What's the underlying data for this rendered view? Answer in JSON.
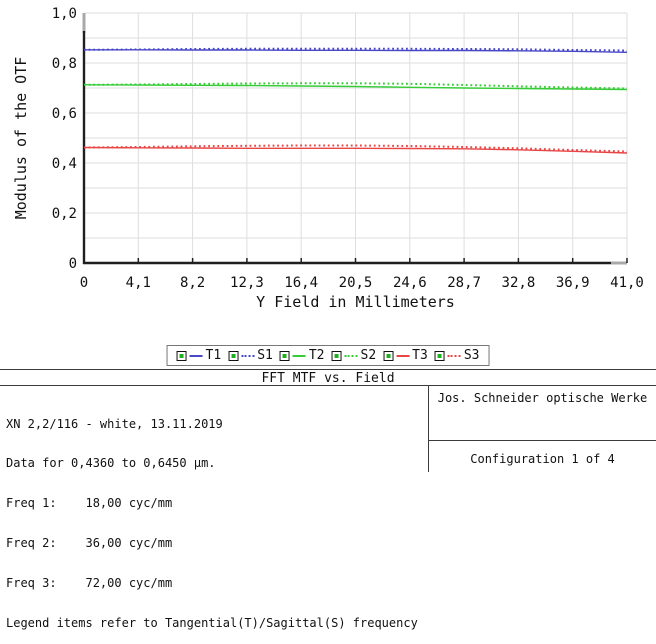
{
  "colors": {
    "blue": "#4747c8",
    "green": "#35cc35",
    "red": "#e84545",
    "grid": "#dedede",
    "axis": "#1f1f1f",
    "axis_cap": "#a9a9a9",
    "text": "#111111"
  },
  "chart_data": {
    "type": "line",
    "xlabel": "Y Field in Millimeters",
    "ylabel": "Modulus of the OTF",
    "xlim": [
      0,
      41.0
    ],
    "ylim": [
      0,
      1.0
    ],
    "grid": "on",
    "xticks": [
      0,
      4.1,
      8.2,
      12.3,
      16.4,
      20.5,
      24.6,
      28.7,
      32.8,
      36.9,
      41.0
    ],
    "xtick_labels": [
      "0",
      "4,1",
      "8,2",
      "12,3",
      "16,4",
      "20,5",
      "24,6",
      "28,7",
      "32,8",
      "36,9",
      "41,0"
    ],
    "yticks": [
      1.0,
      0.8,
      0.6,
      0.4,
      0.2,
      0
    ],
    "ytick_labels": [
      "1,0",
      "0,8",
      "0,6",
      "0,4",
      "0,2",
      "0"
    ],
    "ygrid_step": 0.1,
    "legend_position": "below-chart",
    "series": [
      {
        "name": "T1",
        "color": "blue",
        "style": "solid",
        "points": [
          [
            0,
            0.853
          ],
          [
            4.1,
            0.853
          ],
          [
            8.2,
            0.852
          ],
          [
            12.3,
            0.852
          ],
          [
            16.4,
            0.851
          ],
          [
            20.5,
            0.851
          ],
          [
            24.6,
            0.85
          ],
          [
            28.7,
            0.85
          ],
          [
            32.8,
            0.849
          ],
          [
            36.9,
            0.847
          ],
          [
            41.0,
            0.843
          ]
        ]
      },
      {
        "name": "S1",
        "color": "blue",
        "style": "dotted",
        "points": [
          [
            0,
            0.853
          ],
          [
            4.1,
            0.854
          ],
          [
            8.2,
            0.856
          ],
          [
            12.3,
            0.857
          ],
          [
            16.4,
            0.857
          ],
          [
            20.5,
            0.857
          ],
          [
            24.6,
            0.857
          ],
          [
            28.7,
            0.856
          ],
          [
            32.8,
            0.855
          ],
          [
            36.9,
            0.852
          ],
          [
            41.0,
            0.85
          ]
        ]
      },
      {
        "name": "T2",
        "color": "green",
        "style": "solid",
        "points": [
          [
            0,
            0.713
          ],
          [
            4.1,
            0.712
          ],
          [
            8.2,
            0.711
          ],
          [
            12.3,
            0.71
          ],
          [
            16.4,
            0.708
          ],
          [
            20.5,
            0.706
          ],
          [
            24.6,
            0.703
          ],
          [
            28.7,
            0.7
          ],
          [
            32.8,
            0.698
          ],
          [
            36.9,
            0.696
          ],
          [
            41.0,
            0.694
          ]
        ]
      },
      {
        "name": "S2",
        "color": "green",
        "style": "dotted",
        "points": [
          [
            0,
            0.713
          ],
          [
            4.1,
            0.714
          ],
          [
            8.2,
            0.716
          ],
          [
            12.3,
            0.718
          ],
          [
            16.4,
            0.719
          ],
          [
            20.5,
            0.719
          ],
          [
            24.6,
            0.717
          ],
          [
            28.7,
            0.712
          ],
          [
            32.8,
            0.707
          ],
          [
            36.9,
            0.702
          ],
          [
            41.0,
            0.698
          ]
        ]
      },
      {
        "name": "T3",
        "color": "red",
        "style": "solid",
        "points": [
          [
            0,
            0.462
          ],
          [
            4.1,
            0.461
          ],
          [
            8.2,
            0.46
          ],
          [
            12.3,
            0.459
          ],
          [
            16.4,
            0.459
          ],
          [
            20.5,
            0.459
          ],
          [
            24.6,
            0.458
          ],
          [
            28.7,
            0.457
          ],
          [
            32.8,
            0.453
          ],
          [
            36.9,
            0.447
          ],
          [
            41.0,
            0.44
          ]
        ]
      },
      {
        "name": "S3",
        "color": "red",
        "style": "dotted",
        "points": [
          [
            0,
            0.462
          ],
          [
            4.1,
            0.464
          ],
          [
            8.2,
            0.467
          ],
          [
            12.3,
            0.469
          ],
          [
            16.4,
            0.47
          ],
          [
            20.5,
            0.47
          ],
          [
            24.6,
            0.468
          ],
          [
            28.7,
            0.464
          ],
          [
            32.8,
            0.459
          ],
          [
            36.9,
            0.452
          ],
          [
            41.0,
            0.446
          ]
        ]
      }
    ]
  },
  "legend": {
    "items": [
      {
        "label": "T1",
        "color": "blue",
        "style": "solid"
      },
      {
        "label": "S1",
        "color": "blue",
        "style": "dotted"
      },
      {
        "label": "T2",
        "color": "green",
        "style": "solid"
      },
      {
        "label": "S2",
        "color": "green",
        "style": "dotted"
      },
      {
        "label": "T3",
        "color": "red",
        "style": "solid"
      },
      {
        "label": "S3",
        "color": "red",
        "style": "dotted"
      }
    ]
  },
  "footer": {
    "title": "FFT MTF vs. Field",
    "left_lines": [
      "XN 2,2/116 - white, 13.11.2019",
      "Data for 0,4360 to 0,6450 µm.",
      "Freq 1:    18,00 cyc/mm",
      "Freq 2:    36,00 cyc/mm",
      "Freq 3:    72,00 cyc/mm",
      "Legend items refer to Tangential(T)/Sagittal(S) frequency"
    ],
    "company": "Jos. Schneider optische Werke",
    "configuration": "Configuration 1 of 4"
  }
}
